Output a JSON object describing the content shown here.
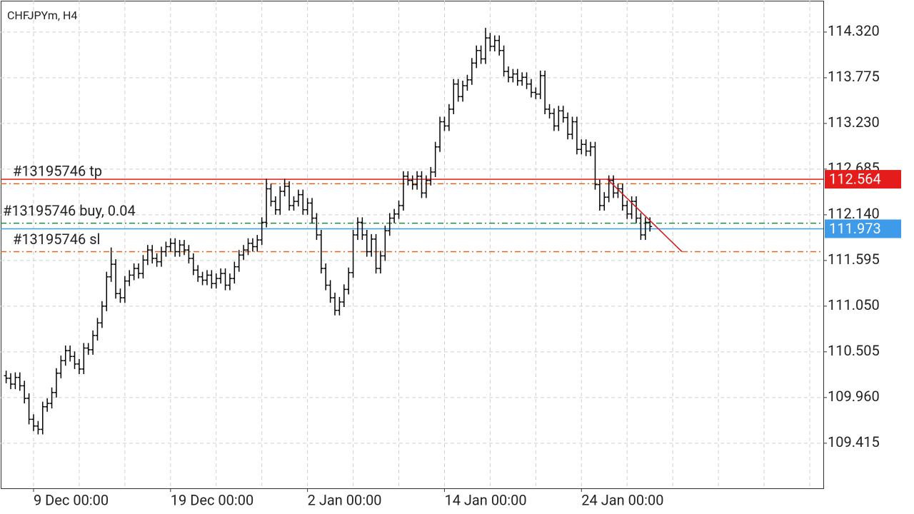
{
  "chart_data": {
    "type": "ohlc",
    "title": "CHFJPYm, H4",
    "open": [
      110.22,
      110.19,
      110.12,
      110.2,
      110.1,
      109.95,
      109.7,
      109.62,
      109.58,
      109.85,
      109.89,
      110.02,
      110.25,
      110.4,
      110.52,
      110.45,
      110.36,
      110.3,
      110.55,
      110.53,
      110.7,
      110.85,
      111.05,
      111.4,
      111.55,
      111.2,
      111.15,
      111.35,
      111.42,
      111.5,
      111.44,
      111.6,
      111.72,
      111.62,
      111.58,
      111.7,
      111.76,
      111.8,
      111.7,
      111.78,
      111.72,
      111.62,
      111.48,
      111.4,
      111.36,
      111.42,
      111.32,
      111.38,
      111.44,
      111.3,
      111.38,
      111.52,
      111.66,
      111.72,
      111.8,
      111.76,
      111.84,
      112.05,
      112.45,
      112.3,
      112.2,
      112.42,
      112.48,
      112.25,
      112.3,
      112.38,
      112.2,
      112.28,
      112.1,
      111.9,
      111.5,
      111.3,
      111.15,
      111.0,
      111.1,
      111.25,
      111.45,
      111.9,
      112.05,
      111.9,
      111.7,
      111.85,
      111.5,
      111.65,
      111.95,
      112.1,
      112.15,
      112.25,
      112.6,
      112.55,
      112.5,
      112.6,
      112.4,
      112.55,
      112.65,
      112.95,
      113.25,
      113.2,
      113.4,
      113.7,
      113.55,
      113.68,
      113.75,
      113.95,
      114.1,
      114.0,
      114.25,
      114.15,
      114.22,
      114.1,
      113.85,
      113.78,
      113.82,
      113.74,
      113.78,
      113.7,
      113.6,
      113.58,
      113.8,
      113.4,
      113.35,
      113.2,
      113.38,
      113.3,
      113.1,
      113.25,
      112.92,
      112.98,
      112.9,
      112.95,
      112.5,
      112.25,
      112.35,
      112.55,
      112.4,
      112.45,
      112.25,
      112.15,
      112.3,
      112.1,
      111.9,
      112.05
    ],
    "high": [
      110.28,
      110.25,
      110.26,
      110.26,
      110.16,
      110.01,
      109.76,
      109.68,
      109.91,
      109.95,
      110.08,
      110.31,
      110.46,
      110.58,
      110.58,
      110.51,
      110.42,
      110.61,
      110.61,
      110.76,
      110.91,
      111.11,
      111.46,
      111.75,
      111.61,
      111.26,
      111.41,
      111.48,
      111.56,
      111.56,
      111.66,
      111.78,
      111.78,
      111.68,
      111.76,
      111.82,
      111.86,
      111.86,
      111.84,
      111.84,
      111.78,
      111.68,
      111.54,
      111.46,
      111.48,
      111.48,
      111.44,
      111.5,
      111.5,
      111.44,
      111.58,
      111.72,
      111.78,
      111.86,
      111.86,
      111.9,
      112.11,
      112.57,
      112.51,
      112.36,
      112.48,
      112.57,
      112.54,
      112.36,
      112.44,
      112.44,
      112.34,
      112.34,
      112.16,
      111.96,
      111.56,
      111.36,
      111.21,
      111.16,
      111.31,
      111.51,
      111.96,
      112.11,
      112.11,
      111.96,
      111.91,
      111.91,
      111.71,
      112.01,
      112.16,
      112.21,
      112.31,
      112.66,
      112.66,
      112.61,
      112.66,
      112.66,
      112.61,
      112.71,
      113.01,
      113.31,
      113.31,
      113.46,
      113.76,
      113.76,
      113.74,
      113.81,
      114.01,
      114.16,
      114.16,
      114.37,
      114.31,
      114.28,
      114.28,
      114.16,
      113.91,
      113.88,
      113.88,
      113.84,
      113.84,
      113.76,
      113.66,
      113.86,
      113.86,
      113.46,
      113.41,
      113.44,
      113.44,
      113.36,
      113.31,
      113.31,
      113.04,
      113.04,
      113.01,
      113.01,
      112.56,
      112.41,
      112.61,
      112.61,
      112.51,
      112.51,
      112.31,
      112.36,
      112.36,
      112.16,
      112.11,
      112.11
    ],
    "low": [
      110.13,
      110.06,
      110.06,
      110.04,
      109.89,
      109.64,
      109.56,
      109.52,
      109.52,
      109.79,
      109.83,
      109.96,
      110.19,
      110.34,
      110.39,
      110.3,
      110.24,
      110.24,
      110.47,
      110.47,
      110.64,
      110.79,
      110.99,
      111.34,
      111.14,
      111.09,
      111.09,
      111.29,
      111.36,
      111.38,
      111.38,
      111.54,
      111.56,
      111.52,
      111.52,
      111.64,
      111.7,
      111.64,
      111.64,
      111.66,
      111.56,
      111.42,
      111.34,
      111.3,
      111.3,
      111.26,
      111.26,
      111.32,
      111.24,
      111.24,
      111.32,
      111.46,
      111.6,
      111.66,
      111.7,
      111.7,
      111.78,
      111.99,
      112.24,
      112.14,
      112.14,
      112.36,
      112.19,
      112.19,
      112.24,
      112.14,
      112.14,
      112.04,
      111.84,
      111.44,
      111.24,
      111.09,
      110.94,
      110.94,
      111.04,
      111.19,
      111.39,
      111.84,
      111.84,
      111.64,
      111.64,
      111.44,
      111.44,
      111.59,
      111.89,
      112.04,
      112.09,
      112.19,
      112.49,
      112.44,
      112.44,
      112.34,
      112.34,
      112.49,
      112.59,
      112.89,
      113.14,
      113.14,
      113.34,
      113.49,
      113.49,
      113.62,
      113.69,
      113.89,
      113.94,
      113.94,
      114.09,
      114.09,
      114.04,
      113.79,
      113.72,
      113.72,
      113.68,
      113.68,
      113.64,
      113.54,
      113.52,
      113.52,
      113.34,
      113.29,
      113.14,
      113.14,
      113.24,
      113.04,
      113.04,
      112.86,
      112.86,
      112.84,
      112.84,
      112.44,
      112.19,
      112.19,
      112.29,
      112.34,
      112.34,
      112.19,
      112.09,
      112.09,
      112.04,
      111.84,
      111.84,
      111.94
    ],
    "close": [
      110.19,
      110.12,
      110.2,
      110.1,
      109.95,
      109.7,
      109.62,
      109.58,
      109.85,
      109.89,
      110.02,
      110.25,
      110.4,
      110.52,
      110.45,
      110.36,
      110.3,
      110.55,
      110.53,
      110.7,
      110.85,
      111.05,
      111.4,
      111.55,
      111.2,
      111.15,
      111.35,
      111.42,
      111.5,
      111.44,
      111.6,
      111.72,
      111.62,
      111.58,
      111.7,
      111.76,
      111.8,
      111.7,
      111.78,
      111.72,
      111.62,
      111.48,
      111.4,
      111.36,
      111.42,
      111.32,
      111.38,
      111.44,
      111.3,
      111.38,
      111.52,
      111.66,
      111.72,
      111.8,
      111.76,
      111.84,
      112.05,
      112.45,
      112.3,
      112.2,
      112.42,
      112.48,
      112.25,
      112.3,
      112.38,
      112.2,
      112.28,
      112.1,
      111.9,
      111.5,
      111.3,
      111.15,
      111.0,
      111.1,
      111.25,
      111.45,
      111.9,
      112.05,
      111.9,
      111.7,
      111.85,
      111.5,
      111.65,
      111.95,
      112.1,
      112.15,
      112.25,
      112.6,
      112.55,
      112.5,
      112.6,
      112.4,
      112.55,
      112.65,
      112.95,
      113.25,
      113.2,
      113.4,
      113.7,
      113.55,
      113.68,
      113.75,
      113.95,
      114.1,
      114.0,
      114.25,
      114.15,
      114.22,
      114.1,
      113.85,
      113.78,
      113.82,
      113.74,
      113.78,
      113.7,
      113.6,
      113.58,
      113.8,
      113.4,
      113.35,
      113.2,
      113.38,
      113.3,
      113.1,
      113.25,
      112.92,
      112.98,
      112.9,
      112.95,
      112.5,
      112.25,
      112.35,
      112.55,
      112.4,
      112.45,
      112.25,
      112.15,
      112.3,
      112.1,
      111.9,
      112.05,
      112.0
    ],
    "color": "#000000",
    "xlim": [
      -1.19,
      178.97
    ],
    "xticks": [
      {
        "value": 6,
        "label": "9 Dec 00:00"
      },
      {
        "value": 36,
        "label": "19 Dec 00:00"
      },
      {
        "value": 66,
        "label": "2 Jan 00:00"
      },
      {
        "value": 96,
        "label": "14 Jan 00:00"
      },
      {
        "value": 126,
        "label": "24 Jan 00:00"
      }
    ],
    "ylim": [
      108.877,
      114.694
    ],
    "yticks": [
      {
        "value": 114.32,
        "label": "114.320"
      },
      113.775,
      {
        "value": 113.23,
        "label": "113.230"
      },
      112.685,
      {
        "value": 112.14,
        "label": "112.140"
      },
      111.595,
      {
        "value": 111.05,
        "label": "111.050"
      },
      110.505,
      {
        "value": 109.96,
        "label": "109.960"
      },
      109.415
    ],
    "grid": true,
    "levels": [
      {
        "label": "#13195746 tp",
        "value": 112.51,
        "color": "#e0661a",
        "style": "dashdot"
      },
      {
        "label": "#13195746 buy, 0.04",
        "value": 112.04,
        "color": "#1f8a3a",
        "style": "dashdot"
      },
      {
        "label": "#13195746 sl",
        "value": 111.7,
        "color": "#e0661a",
        "style": "dashdot"
      }
    ],
    "price_lines": [
      {
        "value": 112.564,
        "color": "#e41c1c"
      },
      {
        "value": 111.973,
        "color": "#3d9be9"
      }
    ],
    "trendline": {
      "x": [
        131.6,
        148.0
      ],
      "y": [
        112.569,
        111.7
      ],
      "color": "#d01818"
    }
  }
}
